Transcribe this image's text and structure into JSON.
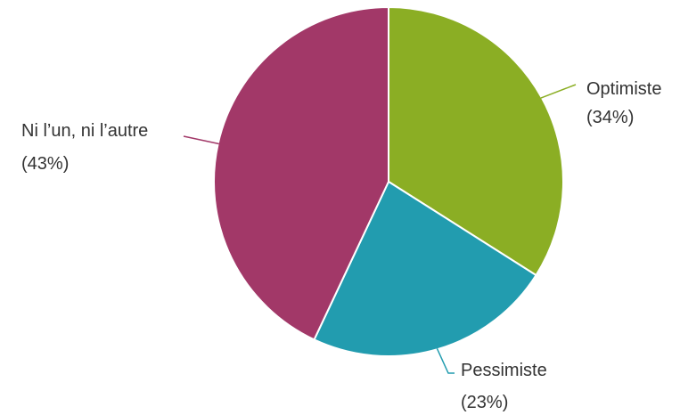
{
  "chart_data": {
    "type": "pie",
    "categories": [
      "Optimiste",
      "Pessimiste",
      "Ni l’un, ni l’autre"
    ],
    "values": [
      34,
      23,
      43
    ],
    "value_labels": [
      "(34%)",
      "(23%)",
      "(43%)"
    ],
    "colors": [
      "#8BAE24",
      "#229CAF",
      "#A23868"
    ],
    "start_angle": "12 o'clock",
    "direction": "clockwise",
    "legend": "none",
    "label_style": "outside with leader lines"
  }
}
